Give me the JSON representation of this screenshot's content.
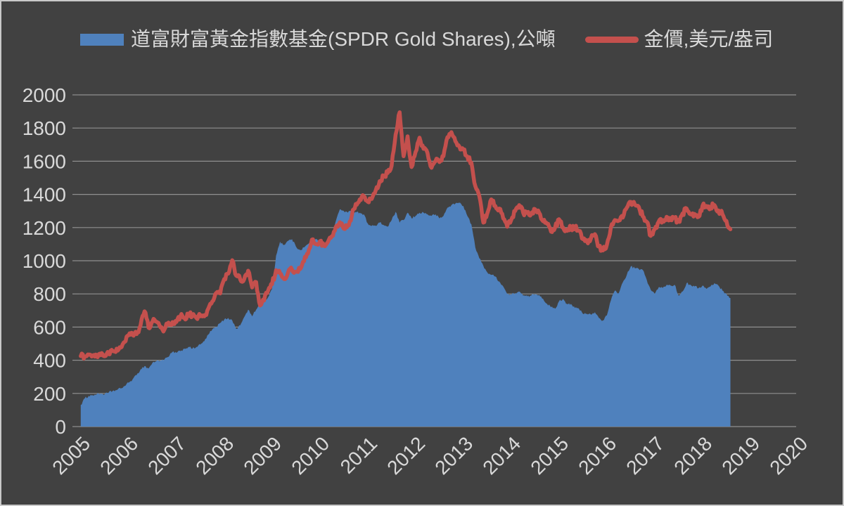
{
  "colors": {
    "background": "#414141",
    "frame_border": "#c9c9c9",
    "gridline": "#9e9e9e",
    "tick_label": "#d9d9d9",
    "legend_text": "#d9d9d9",
    "gld_area_fill": "#4f81bd",
    "gold_price_line": "#c4504d"
  },
  "chart_data": {
    "type": "combo",
    "subtype": [
      "area",
      "line"
    ],
    "grid": true,
    "legend_position": "top",
    "x_axis": {
      "min": 2005,
      "max": 2020,
      "ticks": [
        "2005",
        "2006",
        "2007",
        "2008",
        "2009",
        "2010",
        "2011",
        "2012",
        "2013",
        "2014",
        "2015",
        "2016",
        "2017",
        "2018",
        "2019",
        "2020"
      ],
      "tick_rotation_deg": -45
    },
    "y_axis": {
      "min": 0,
      "max": 2000,
      "step": 200,
      "ticks": [
        "0",
        "200",
        "400",
        "600",
        "800",
        "1000",
        "1200",
        "1400",
        "1600",
        "1800",
        "2000"
      ]
    },
    "sampling": "monthly, Jan 2005 - Aug 2018",
    "series": [
      {
        "name": "道富財富黃金指數基金(SPDR Gold Shares),公噸",
        "type": "area",
        "color": "#4f81bd",
        "unit": "公噸",
        "start_year": 2005,
        "values": [
          130,
          170,
          185,
          190,
          195,
          200,
          195,
          205,
          215,
          220,
          230,
          245,
          265,
          285,
          310,
          345,
          365,
          350,
          385,
          395,
          400,
          405,
          420,
          450,
          445,
          455,
          470,
          480,
          470,
          480,
          495,
          515,
          555,
          585,
          600,
          625,
          645,
          655,
          640,
          590,
          610,
          660,
          705,
          665,
          705,
          745,
          755,
          780,
          830,
          1030,
          1115,
          1095,
          1120,
          1130,
          1085,
          1065,
          1080,
          1100,
          1115,
          1130,
          1110,
          1105,
          1120,
          1155,
          1240,
          1310,
          1300,
          1290,
          1300,
          1295,
          1290,
          1280,
          1225,
          1210,
          1210,
          1230,
          1215,
          1205,
          1245,
          1295,
          1230,
          1245,
          1290,
          1255,
          1270,
          1290,
          1290,
          1280,
          1270,
          1280,
          1255,
          1270,
          1320,
          1335,
          1345,
          1350,
          1330,
          1270,
          1220,
          1080,
          1015,
          970,
          930,
          915,
          905,
          875,
          845,
          800,
          795,
          805,
          815,
          790,
          785,
          790,
          800,
          795,
          770,
          740,
          720,
          710,
          755,
          770,
          740,
          740,
          715,
          710,
          680,
          680,
          675,
          690,
          655,
          640,
          670,
          760,
          820,
          805,
          870,
          915,
          965,
          955,
          950,
          945,
          885,
          825,
          800,
          840,
          835,
          855,
          850,
          855,
          790,
          815,
          865,
          855,
          845,
          835,
          850,
          830,
          845,
          865,
          850,
          820,
          800,
          775
        ]
      },
      {
        "name": "金價,美元/盎司",
        "type": "line",
        "color": "#c4504d",
        "unit": "美元/盎司",
        "start_year": 2005,
        "values": [
          425,
          423,
          434,
          429,
          421,
          430,
          424,
          437,
          456,
          470,
          476,
          510,
          550,
          555,
          557,
          610,
          695,
          596,
          633,
          632,
          598,
          585,
          627,
          630,
          631,
          665,
          655,
          680,
          667,
          655,
          665,
          665,
          712,
          754,
          806,
          803,
          890,
          922,
          1003,
          910,
          888,
          889,
          940,
          839,
          871,
          730,
          760,
          820,
          858,
          943,
          924,
          890,
          928,
          946,
          934,
          949,
          996,
          1043,
          1127,
          1100,
          1118,
          1095,
          1113,
          1148,
          1205,
          1232,
          1193,
          1215,
          1271,
          1342,
          1370,
          1390,
          1356,
          1373,
          1424,
          1480,
          1513,
          1529,
          1573,
          1760,
          1895,
          1630,
          1750,
          1565,
          1655,
          1742,
          1675,
          1650,
          1560,
          1600,
          1595,
          1630,
          1745,
          1775,
          1720,
          1688,
          1670,
          1628,
          1592,
          1450,
          1390,
          1230,
          1285,
          1370,
          1330,
          1315,
          1255,
          1205,
          1245,
          1300,
          1335,
          1290,
          1288,
          1280,
          1310,
          1290,
          1238,
          1223,
          1175,
          1200,
          1250,
          1200,
          1180,
          1198,
          1200,
          1180,
          1130,
          1118,
          1135,
          1160,
          1085,
          1062,
          1095,
          1200,
          1245,
          1242,
          1260,
          1320,
          1355,
          1340,
          1325,
          1268,
          1235,
          1150,
          1190,
          1235,
          1245,
          1265,
          1245,
          1258,
          1235,
          1285,
          1315,
          1280,
          1282,
          1265,
          1330,
          1330,
          1325,
          1335,
          1303,
          1280,
          1240,
          1190
        ]
      }
    ]
  }
}
